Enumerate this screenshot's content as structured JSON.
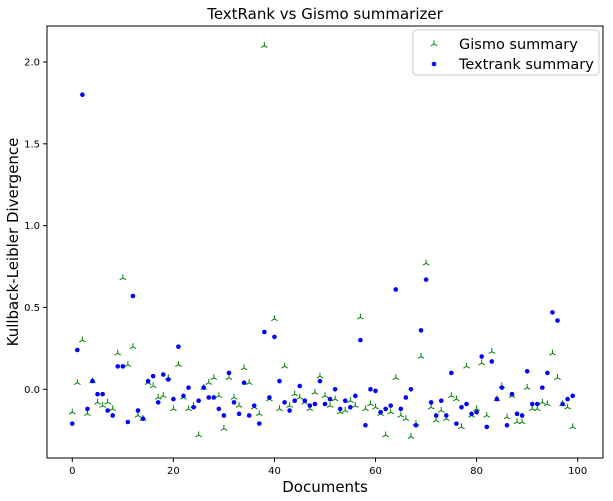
{
  "chart_data": {
    "type": "scatter",
    "title": "TextRank vs Gismo summarizer",
    "xlabel": "Documents",
    "ylabel": "Kullback-Leibler Divergence",
    "xlim": [
      -5,
      105
    ],
    "ylim": [
      -0.42,
      2.22
    ],
    "x_ticks": [
      0,
      20,
      40,
      60,
      80,
      100
    ],
    "x_tick_labels": [
      "0",
      "20",
      "40",
      "60",
      "80",
      "100"
    ],
    "y_ticks": [
      0.0,
      0.5,
      1.0,
      1.5,
      2.0
    ],
    "y_tick_labels": [
      "0.0",
      "0.5",
      "1.0",
      "1.5",
      "2.0"
    ],
    "grid": false,
    "legend_position": "top-right",
    "series": [
      {
        "name": "Gismo summary",
        "marker": "tri_up",
        "color": "#008000",
        "x": [
          0,
          1,
          2,
          3,
          4,
          5,
          6,
          7,
          8,
          9,
          10,
          11,
          12,
          13,
          14,
          15,
          16,
          17,
          18,
          19,
          20,
          21,
          22,
          23,
          24,
          25,
          26,
          27,
          28,
          29,
          30,
          31,
          32,
          33,
          34,
          35,
          36,
          37,
          38,
          39,
          40,
          41,
          42,
          43,
          44,
          45,
          46,
          47,
          48,
          49,
          50,
          51,
          52,
          53,
          54,
          55,
          56,
          57,
          58,
          59,
          60,
          61,
          62,
          63,
          64,
          65,
          66,
          67,
          68,
          69,
          70,
          71,
          72,
          73,
          74,
          75,
          76,
          77,
          78,
          79,
          80,
          81,
          82,
          83,
          84,
          85,
          86,
          87,
          88,
          89,
          90,
          91,
          92,
          93,
          94,
          95,
          96,
          97,
          98,
          99
        ],
        "y": [
          -0.14,
          0.04,
          0.3,
          -0.15,
          0.05,
          -0.08,
          -0.1,
          -0.08,
          -0.12,
          0.22,
          0.68,
          0.15,
          0.26,
          -0.16,
          -0.18,
          0.04,
          0.02,
          -0.05,
          -0.04,
          0.07,
          -0.12,
          0.15,
          -0.05,
          -0.12,
          -0.1,
          -0.28,
          0.01,
          0.04,
          0.07,
          -0.04,
          -0.24,
          0.07,
          -0.05,
          -0.1,
          0.13,
          0.04,
          -0.11,
          -0.15,
          2.1,
          -0.06,
          0.43,
          -0.12,
          0.14,
          -0.1,
          -0.03,
          -0.05,
          -0.08,
          -0.12,
          -0.02,
          0.08,
          -0.04,
          -0.1,
          -0.06,
          -0.14,
          -0.13,
          -0.07,
          -0.1,
          0.44,
          -0.12,
          -0.09,
          -0.11,
          -0.15,
          -0.28,
          -0.14,
          0.07,
          -0.16,
          -0.18,
          -0.29,
          -0.21,
          0.2,
          0.77,
          -0.11,
          -0.19,
          -0.13,
          -0.18,
          -0.04,
          -0.06,
          -0.23,
          0.14,
          -0.16,
          -0.12,
          0.16,
          -0.16,
          0.23,
          -0.06,
          0.02,
          -0.17,
          -0.04,
          -0.2,
          -0.2,
          0.01,
          -0.12,
          -0.12,
          -0.08,
          -0.09,
          0.22,
          0.07,
          -0.09,
          -0.11,
          -0.23
        ]
      },
      {
        "name": "Textrank summary",
        "marker": "dot",
        "color": "#0000ff",
        "x": [
          0,
          1,
          2,
          3,
          4,
          5,
          6,
          7,
          8,
          9,
          10,
          11,
          12,
          13,
          14,
          15,
          16,
          17,
          18,
          19,
          20,
          21,
          22,
          23,
          24,
          25,
          26,
          27,
          28,
          29,
          30,
          31,
          32,
          33,
          34,
          35,
          36,
          37,
          38,
          39,
          40,
          41,
          42,
          43,
          44,
          45,
          46,
          47,
          48,
          49,
          50,
          51,
          52,
          53,
          54,
          55,
          56,
          57,
          58,
          59,
          60,
          61,
          62,
          63,
          64,
          65,
          66,
          67,
          68,
          69,
          70,
          71,
          72,
          73,
          74,
          75,
          76,
          77,
          78,
          79,
          80,
          81,
          82,
          83,
          84,
          85,
          86,
          87,
          88,
          89,
          90,
          91,
          92,
          93,
          94,
          95,
          96,
          97,
          98,
          99
        ],
        "y": [
          -0.21,
          0.24,
          1.8,
          -0.12,
          0.05,
          -0.03,
          -0.03,
          -0.13,
          -0.16,
          0.14,
          0.14,
          -0.2,
          0.57,
          -0.13,
          -0.18,
          0.05,
          0.08,
          -0.08,
          0.09,
          0.06,
          -0.06,
          0.26,
          -0.04,
          0.01,
          -0.11,
          -0.07,
          0.01,
          -0.05,
          -0.05,
          -0.12,
          -0.16,
          0.1,
          -0.08,
          -0.15,
          0.04,
          -0.16,
          -0.1,
          -0.21,
          0.35,
          -0.05,
          0.32,
          0.05,
          -0.08,
          -0.13,
          -0.07,
          0.02,
          -0.07,
          -0.1,
          -0.09,
          0.05,
          -0.09,
          -0.06,
          0.0,
          -0.12,
          -0.07,
          -0.11,
          -0.04,
          0.3,
          -0.22,
          0.0,
          -0.01,
          -0.14,
          -0.12,
          -0.1,
          0.61,
          -0.12,
          -0.05,
          0.0,
          -0.22,
          0.36,
          0.67,
          -0.08,
          -0.16,
          -0.07,
          -0.16,
          0.1,
          -0.21,
          -0.11,
          -0.09,
          -0.15,
          -0.14,
          0.2,
          -0.23,
          0.17,
          -0.06,
          0.01,
          -0.22,
          -0.03,
          -0.15,
          -0.16,
          0.11,
          -0.09,
          -0.09,
          0.01,
          0.1,
          0.47,
          0.42,
          -0.09,
          -0.06,
          -0.04
        ]
      }
    ]
  }
}
